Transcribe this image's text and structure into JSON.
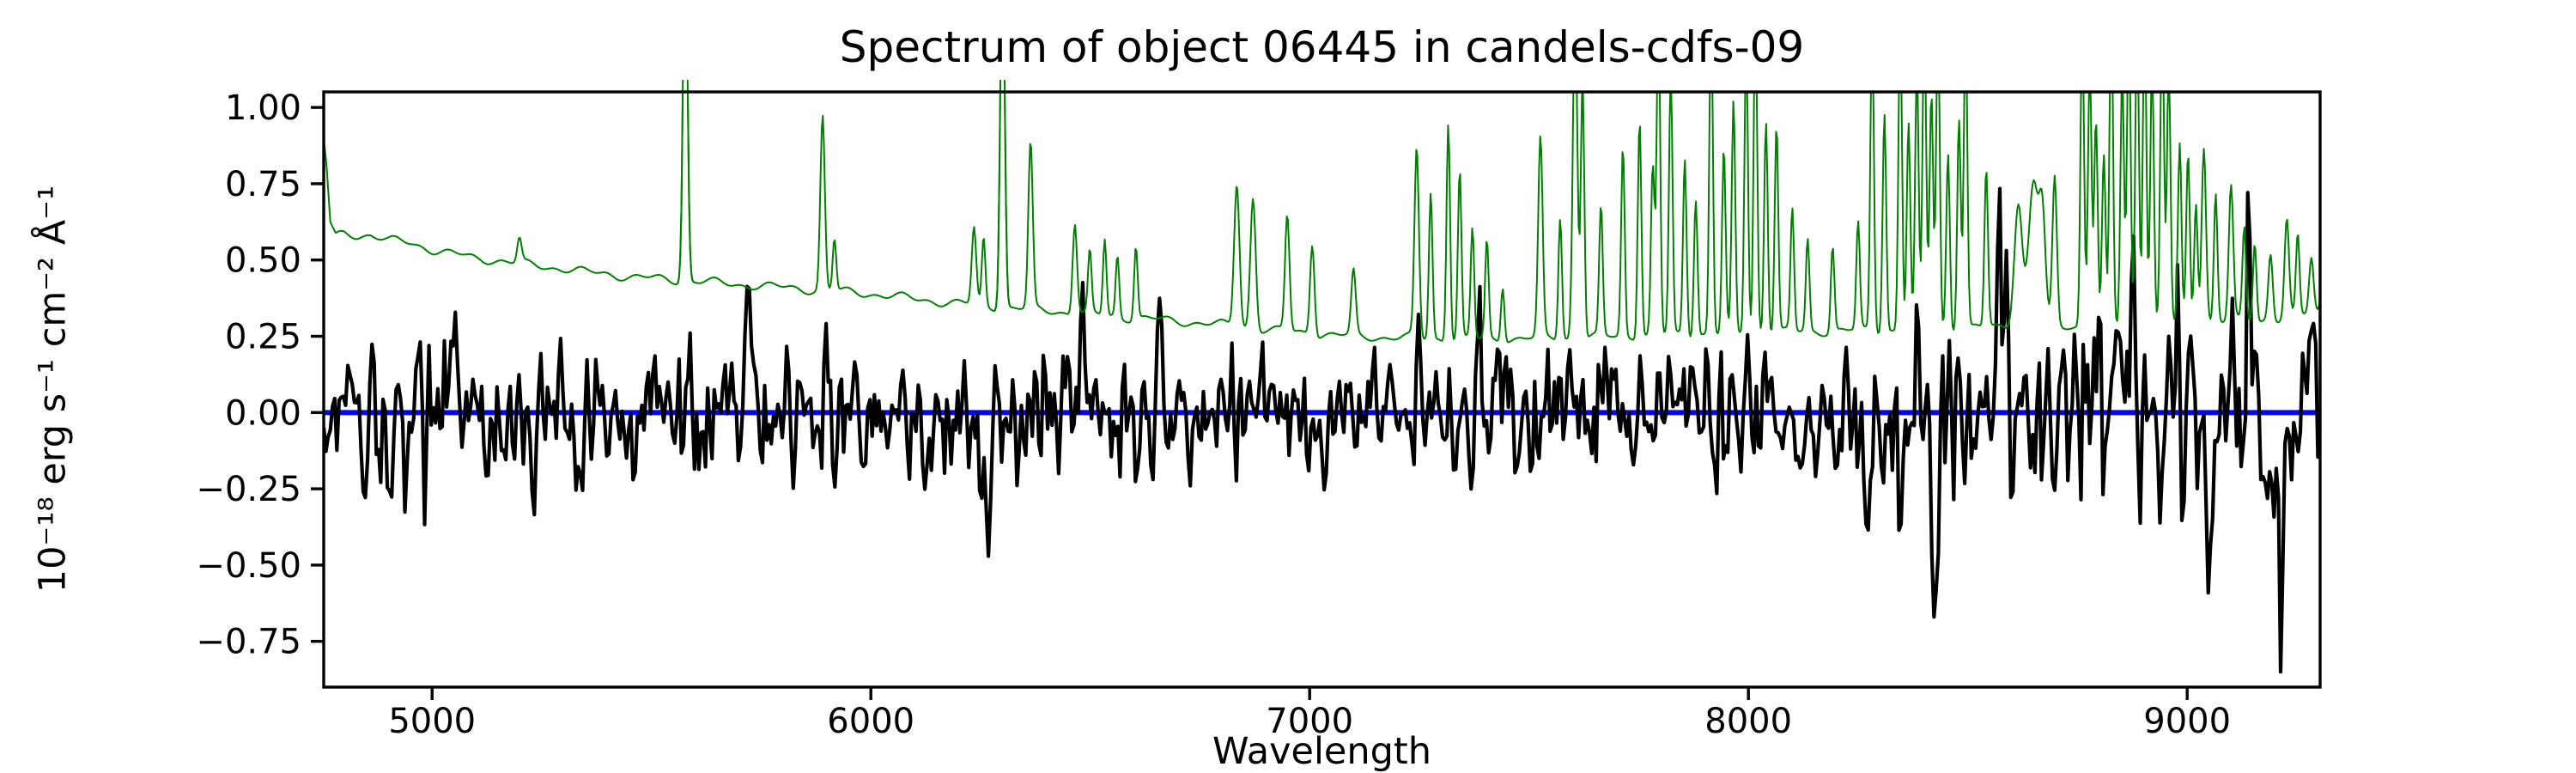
{
  "figure": {
    "background": "#ffffff"
  },
  "chart_data": {
    "type": "line",
    "title": "Spectrum of object 06445 in candels-cdfs-09",
    "xlabel": "Wavelength",
    "ylabel": "10⁻¹⁸ erg s⁻¹ cm⁻² Å⁻¹",
    "xlim": [
      4753,
      9303
    ],
    "ylim": [
      -0.9,
      1.051
    ],
    "grid": false,
    "legend": null,
    "x_ticks": {
      "values": [
        5000,
        6000,
        7000,
        8000,
        9000
      ],
      "labels": [
        "5000",
        "6000",
        "7000",
        "8000",
        "9000"
      ]
    },
    "y_ticks": {
      "values": [
        1.0,
        0.75,
        0.5,
        0.25,
        0.0,
        -0.25,
        -0.5,
        -0.75
      ],
      "labels": [
        "1.00",
        "0.75",
        "0.50",
        "0.25",
        "0.00",
        "−0.25",
        "−0.50",
        "−0.75"
      ]
    },
    "series": [
      {
        "name": "object-flux",
        "color": "#000000",
        "line_width": 4.2,
        "description": "noisy observed flux oscillating around zero"
      },
      {
        "name": "noise-sky-spectrum",
        "color": "#008000",
        "line_width": 2.0,
        "description": "noise / sky spectrum: declining continuum with narrow sky emission lines, many clipped at plot top"
      },
      {
        "name": "zero-line",
        "color": "#0000ff",
        "line_width": 6.0,
        "y": 0.0,
        "description": "horizontal reference line at flux = 0"
      }
    ],
    "synthesis": {
      "seed": 6445,
      "flux_step": 5.0,
      "noise_step": 2.5,
      "flux_clamp": [
        -0.85,
        1.02
      ],
      "flux_smooth": [
        0.88,
        0.47
      ],
      "spike_sigma": 5.0,
      "flux_sigma_nodes": [
        [
          4753,
          0.13
        ],
        [
          5000,
          0.125
        ],
        [
          5500,
          0.12
        ],
        [
          6000,
          0.115
        ],
        [
          6500,
          0.11
        ],
        [
          6900,
          0.105
        ],
        [
          7200,
          0.1
        ],
        [
          7500,
          0.105
        ],
        [
          7700,
          0.115
        ],
        [
          8000,
          0.125
        ],
        [
          8250,
          0.15
        ],
        [
          8400,
          0.17
        ],
        [
          8600,
          0.16
        ],
        [
          8800,
          0.19
        ],
        [
          9000,
          0.2
        ],
        [
          9150,
          0.18
        ],
        [
          9303,
          0.16
        ]
      ],
      "flux_spikes": [
        [
          5720,
          0.28
        ],
        [
          6480,
          0.28
        ],
        [
          6660,
          0.3
        ],
        [
          7250,
          0.42
        ],
        [
          7385,
          0.45
        ],
        [
          7428,
          0.32
        ],
        [
          8570,
          0.35
        ],
        [
          8875,
          0.55
        ],
        [
          8982,
          0.55
        ],
        [
          9140,
          0.32
        ],
        [
          4905,
          -0.3
        ],
        [
          5210,
          -0.25
        ],
        [
          5455,
          -0.28
        ],
        [
          6265,
          -0.3
        ],
        [
          7030,
          -0.25
        ],
        [
          8346,
          -0.42
        ],
        [
          8422,
          -0.48
        ],
        [
          8640,
          -0.3
        ],
        [
          8890,
          -0.3
        ],
        [
          8988,
          -0.6
        ],
        [
          9215,
          -0.55
        ]
      ],
      "noise_continuum_nodes": [
        [
          4753,
          0.9
        ],
        [
          4760,
          0.8
        ],
        [
          4768,
          0.62
        ],
        [
          4780,
          0.575
        ],
        [
          4800,
          0.585
        ],
        [
          4830,
          0.58
        ],
        [
          4860,
          0.585
        ],
        [
          4900,
          0.565
        ],
        [
          4950,
          0.555
        ],
        [
          5000,
          0.535
        ],
        [
          5050,
          0.52
        ],
        [
          5100,
          0.505
        ],
        [
          5150,
          0.5
        ],
        [
          5200,
          0.487
        ],
        [
          5250,
          0.48
        ],
        [
          5300,
          0.472
        ],
        [
          5350,
          0.46
        ],
        [
          5400,
          0.455
        ],
        [
          5450,
          0.445
        ],
        [
          5500,
          0.44
        ],
        [
          5550,
          0.435
        ],
        [
          5600,
          0.43
        ],
        [
          5650,
          0.425
        ],
        [
          5700,
          0.42
        ],
        [
          5750,
          0.415
        ],
        [
          5800,
          0.41
        ],
        [
          5850,
          0.405
        ],
        [
          5900,
          0.4
        ],
        [
          5950,
          0.395
        ],
        [
          6000,
          0.39
        ],
        [
          6100,
          0.372
        ],
        [
          6200,
          0.358
        ],
        [
          6300,
          0.345
        ],
        [
          6400,
          0.335
        ],
        [
          6500,
          0.322
        ],
        [
          6600,
          0.31
        ],
        [
          6700,
          0.3
        ],
        [
          6800,
          0.288
        ],
        [
          6900,
          0.272
        ],
        [
          7000,
          0.26
        ],
        [
          7100,
          0.25
        ],
        [
          7200,
          0.246
        ],
        [
          7300,
          0.242
        ],
        [
          7400,
          0.24
        ],
        [
          7500,
          0.243
        ],
        [
          7600,
          0.246
        ],
        [
          7700,
          0.25
        ],
        [
          7800,
          0.255
        ],
        [
          7900,
          0.258
        ],
        [
          8000,
          0.262
        ],
        [
          8100,
          0.265
        ],
        [
          8200,
          0.268
        ],
        [
          8300,
          0.27
        ],
        [
          8400,
          0.272
        ],
        [
          8500,
          0.275
        ],
        [
          8600,
          0.285
        ],
        [
          8650,
          0.295
        ],
        [
          8700,
          0.285
        ],
        [
          8800,
          0.282
        ],
        [
          8900,
          0.285
        ],
        [
          9000,
          0.295
        ],
        [
          9100,
          0.3
        ],
        [
          9200,
          0.305
        ],
        [
          9303,
          0.33
        ]
      ],
      "noise_wiggle": {
        "amps": [
          0.01,
          0.007
        ],
        "periods": [
          23,
          9.7
        ],
        "phases": [
          1.3,
          4.1
        ]
      },
      "sky_lines": [
        [
          5199,
          0.08,
          5
        ],
        [
          5577,
          1.2,
          5
        ],
        [
          5890,
          0.57,
          5
        ],
        [
          5917,
          0.17,
          4
        ],
        [
          6235,
          0.25,
          5
        ],
        [
          6257,
          0.22,
          4
        ],
        [
          6300,
          1.2,
          5
        ],
        [
          6364,
          0.54,
          5
        ],
        [
          6465,
          0.3,
          5
        ],
        [
          6499,
          0.2,
          4
        ],
        [
          6533,
          0.25,
          4
        ],
        [
          6562,
          0.2,
          4
        ],
        [
          6604,
          0.24,
          4
        ],
        [
          6834,
          0.47,
          6
        ],
        [
          6871,
          0.43,
          6
        ],
        [
          6949,
          0.38,
          5
        ],
        [
          7006,
          0.3,
          5
        ],
        [
          7100,
          0.21,
          5
        ],
        [
          7244,
          0.62,
          5
        ],
        [
          7276,
          0.48,
          4
        ],
        [
          7316,
          0.72,
          4
        ],
        [
          7342,
          0.55,
          4
        ],
        [
          7371,
          0.36,
          4
        ],
        [
          7404,
          0.32,
          4
        ],
        [
          7440,
          0.18,
          4
        ],
        [
          7526,
          0.65,
          5
        ],
        [
          7571,
          0.4,
          4
        ],
        [
          7605,
          1.1,
          5
        ],
        [
          7622,
          0.85,
          4
        ],
        [
          7664,
          0.42,
          4
        ],
        [
          7714,
          0.62,
          4
        ],
        [
          7752,
          0.72,
          4
        ],
        [
          7782,
          0.55,
          4
        ],
        [
          7795,
          1.05,
          4
        ],
        [
          7823,
          0.85,
          4
        ],
        [
          7855,
          0.58,
          4
        ],
        [
          7880,
          0.45,
          4
        ],
        [
          7915,
          1.05,
          4
        ],
        [
          7944,
          0.6,
          4
        ],
        [
          7966,
          0.75,
          4
        ],
        [
          7995,
          0.95,
          4
        ],
        [
          8016,
          1.05,
          4
        ],
        [
          8040,
          0.7,
          4
        ],
        [
          8064,
          0.68,
          4
        ],
        [
          8100,
          0.4,
          4
        ],
        [
          8135,
          0.3,
          4
        ],
        [
          8192,
          0.28,
          4
        ],
        [
          8250,
          0.35,
          4
        ],
        [
          8282,
          1.0,
          4
        ],
        [
          8310,
          0.72,
          4
        ],
        [
          8346,
          1.05,
          4
        ],
        [
          8365,
          0.68,
          4
        ],
        [
          8384,
          0.85,
          4
        ],
        [
          8401,
          1.05,
          4
        ],
        [
          8417,
          0.78,
          4
        ],
        [
          8432,
          1.05,
          4
        ],
        [
          8455,
          0.58,
          4
        ],
        [
          8480,
          0.7,
          4
        ],
        [
          8495,
          1.0,
          4
        ],
        [
          8542,
          0.52,
          4
        ],
        [
          8615,
          0.4,
          9
        ],
        [
          8650,
          0.46,
          11
        ],
        [
          8670,
          0.33,
          7
        ],
        [
          8698,
          0.48,
          5
        ],
        [
          8761,
          1.0,
          4
        ],
        [
          8778,
          0.88,
          4
        ],
        [
          8792,
          0.68,
          4
        ],
        [
          8810,
          0.55,
          4
        ],
        [
          8827,
          1.05,
          4
        ],
        [
          8852,
          0.84,
          4
        ],
        [
          8867,
          1.05,
          4
        ],
        [
          8886,
          1.05,
          4
        ],
        [
          8903,
          1.05,
          4
        ],
        [
          8920,
          0.88,
          4
        ],
        [
          8943,
          1.05,
          4
        ],
        [
          8958,
          0.84,
          4
        ],
        [
          8983,
          0.58,
          4
        ],
        [
          9002,
          0.55,
          4
        ],
        [
          9020,
          0.4,
          4
        ],
        [
          9038,
          0.58,
          5
        ],
        [
          9065,
          0.42,
          4
        ],
        [
          9100,
          0.44,
          5
        ],
        [
          9130,
          0.3,
          4
        ],
        [
          9154,
          0.26,
          4
        ],
        [
          9190,
          0.22,
          5
        ],
        [
          9227,
          0.32,
          5
        ],
        [
          9252,
          0.26,
          4
        ],
        [
          9283,
          0.18,
          5
        ],
        [
          9312,
          0.22,
          5
        ],
        [
          9340,
          0.3,
          6
        ]
      ],
      "unclipped_windows": [
        [
          5558,
          5598
        ],
        [
          6281,
          6320
        ]
      ]
    }
  }
}
